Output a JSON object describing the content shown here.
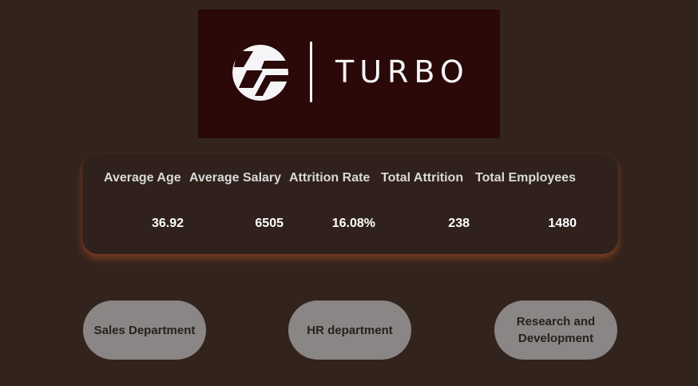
{
  "logo": {
    "brand_text": "TURBO",
    "mark_icon": "turbo-logo-mark-icon"
  },
  "kpis": [
    {
      "label": "Average Age",
      "value": "36.92"
    },
    {
      "label": "Average Salary",
      "value": "6505"
    },
    {
      "label": "Attrition Rate",
      "value": "16.08%"
    },
    {
      "label": "Total Attrition",
      "value": "238"
    },
    {
      "label": "Total Employees",
      "value": "1480"
    }
  ],
  "departments": [
    {
      "label": "Sales Department"
    },
    {
      "label": "HR department"
    },
    {
      "label": "Research and\nDevelopment"
    }
  ],
  "colors": {
    "background": "#33231d",
    "logo_background": "#2a0908",
    "card_glow": "#96482",
    "button_fill": "#898685"
  }
}
